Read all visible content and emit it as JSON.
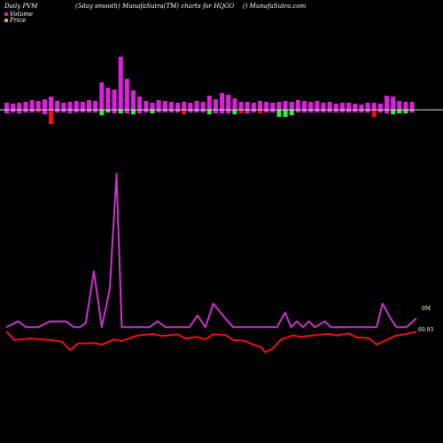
{
  "header": {
    "left": "Daily PVM",
    "middle": "(5day smooth) MunafaSutra(TM) charts for HQGO",
    "right": "() MunafaSutra.com"
  },
  "legend": {
    "volume": {
      "label": "Volume",
      "color": "#cc22cc"
    },
    "price": {
      "label": "Price",
      "color": "#ee9966"
    }
  },
  "end_labels": {
    "volume": "0M",
    "price": "60.93"
  },
  "colors": {
    "bar_up_magenta": "#dd22dd",
    "bar_up_green": "#33ee33",
    "bar_down_red": "#ee1111",
    "volume_line": "#cc33cc",
    "price_line": "#ee1111",
    "baseline": "#dddddd"
  },
  "chart_data": {
    "type": "line",
    "bars": [
      {
        "v": 8,
        "d": 4,
        "u": "m"
      },
      {
        "v": 7,
        "d": 3,
        "u": "m"
      },
      {
        "v": 8,
        "d": 4,
        "u": "m"
      },
      {
        "v": 9,
        "d": 3,
        "u": "m"
      },
      {
        "v": 11,
        "d": 3,
        "u": "m"
      },
      {
        "v": 10,
        "d": 3,
        "u": "r"
      },
      {
        "v": 12,
        "d": 5,
        "u": "m"
      },
      {
        "v": 15,
        "d": 16,
        "u": "r"
      },
      {
        "v": 10,
        "d": 3,
        "u": "m"
      },
      {
        "v": 8,
        "d": 3,
        "u": "m"
      },
      {
        "v": 9,
        "d": 4,
        "u": "m"
      },
      {
        "v": 10,
        "d": 3,
        "u": "m"
      },
      {
        "v": 9,
        "d": 3,
        "u": "m"
      },
      {
        "v": 11,
        "d": 3,
        "u": "m"
      },
      {
        "v": 10,
        "d": 3,
        "u": "m"
      },
      {
        "v": 31,
        "d": 6,
        "u": "g"
      },
      {
        "v": 25,
        "d": 3,
        "u": "g"
      },
      {
        "v": 23,
        "d": 4,
        "u": "m"
      },
      {
        "v": 60,
        "d": 4,
        "u": "g"
      },
      {
        "v": 35,
        "d": 4,
        "u": "m"
      },
      {
        "v": 22,
        "d": 5,
        "u": "g"
      },
      {
        "v": 15,
        "d": 4,
        "u": "m"
      },
      {
        "v": 10,
        "d": 3,
        "u": "m"
      },
      {
        "v": 8,
        "d": 4,
        "u": "g"
      },
      {
        "v": 11,
        "d": 3,
        "u": "m"
      },
      {
        "v": 10,
        "d": 3,
        "u": "m"
      },
      {
        "v": 9,
        "d": 3,
        "u": "m"
      },
      {
        "v": 8,
        "d": 3,
        "u": "m"
      },
      {
        "v": 9,
        "d": 5,
        "u": "r"
      },
      {
        "v": 8,
        "d": 3,
        "u": "m"
      },
      {
        "v": 10,
        "d": 3,
        "u": "m"
      },
      {
        "v": 9,
        "d": 3,
        "u": "m"
      },
      {
        "v": 16,
        "d": 5,
        "u": "g"
      },
      {
        "v": 12,
        "d": 4,
        "u": "m"
      },
      {
        "v": 19,
        "d": 4,
        "u": "m"
      },
      {
        "v": 17,
        "d": 4,
        "u": "m"
      },
      {
        "v": 13,
        "d": 5,
        "u": "g"
      },
      {
        "v": 9,
        "d": 4,
        "u": "r"
      },
      {
        "v": 9,
        "d": 4,
        "u": "m"
      },
      {
        "v": 8,
        "d": 3,
        "u": "m"
      },
      {
        "v": 10,
        "d": 4,
        "u": "r"
      },
      {
        "v": 9,
        "d": 3,
        "u": "m"
      },
      {
        "v": 8,
        "d": 3,
        "u": "m"
      },
      {
        "v": 9,
        "d": 8,
        "u": "g"
      },
      {
        "v": 10,
        "d": 8,
        "u": "g"
      },
      {
        "v": 9,
        "d": 6,
        "u": "g"
      },
      {
        "v": 11,
        "d": 3,
        "u": "m"
      },
      {
        "v": 10,
        "d": 3,
        "u": "m"
      },
      {
        "v": 9,
        "d": 3,
        "u": "m"
      },
      {
        "v": 10,
        "d": 3,
        "u": "m"
      },
      {
        "v": 8,
        "d": 3,
        "u": "m"
      },
      {
        "v": 9,
        "d": 3,
        "u": "m"
      },
      {
        "v": 7,
        "d": 3,
        "u": "m"
      },
      {
        "v": 8,
        "d": 3,
        "u": "m"
      },
      {
        "v": 8,
        "d": 3,
        "u": "m"
      },
      {
        "v": 7,
        "d": 3,
        "u": "m"
      },
      {
        "v": 6,
        "d": 3,
        "u": "m"
      },
      {
        "v": 8,
        "d": 3,
        "u": "m"
      },
      {
        "v": 8,
        "d": 8,
        "u": "r"
      },
      {
        "v": 7,
        "d": 3,
        "u": "m"
      },
      {
        "v": 16,
        "d": 4,
        "u": "m"
      },
      {
        "v": 15,
        "d": 5,
        "u": "g"
      },
      {
        "v": 10,
        "d": 4,
        "u": "g"
      },
      {
        "v": 9,
        "d": 4,
        "u": "g"
      },
      {
        "v": 9,
        "d": 3,
        "u": "m"
      }
    ],
    "volume_line": [
      {
        "x": 0,
        "y": 2
      },
      {
        "x": 3,
        "y": 4
      },
      {
        "x": 5,
        "y": 2
      },
      {
        "x": 8,
        "y": 2
      },
      {
        "x": 11,
        "y": 4
      },
      {
        "x": 15,
        "y": 4
      },
      {
        "x": 17,
        "y": 2
      },
      {
        "x": 18.5,
        "y": 2
      },
      {
        "x": 20,
        "y": 3.5
      },
      {
        "x": 22,
        "y": 21
      },
      {
        "x": 24,
        "y": 2
      },
      {
        "x": 26,
        "y": 15
      },
      {
        "x": 27.7,
        "y": 54
      },
      {
        "x": 29,
        "y": 2
      },
      {
        "x": 33,
        "y": 2
      },
      {
        "x": 36,
        "y": 2
      },
      {
        "x": 38,
        "y": 4
      },
      {
        "x": 40,
        "y": 2
      },
      {
        "x": 43,
        "y": 2
      },
      {
        "x": 46,
        "y": 2
      },
      {
        "x": 48,
        "y": 6
      },
      {
        "x": 50,
        "y": 2
      },
      {
        "x": 52,
        "y": 10
      },
      {
        "x": 55,
        "y": 5
      },
      {
        "x": 57,
        "y": 2
      },
      {
        "x": 60,
        "y": 2
      },
      {
        "x": 64,
        "y": 2
      },
      {
        "x": 68,
        "y": 2
      },
      {
        "x": 70,
        "y": 7
      },
      {
        "x": 71.5,
        "y": 2
      },
      {
        "x": 73,
        "y": 4
      },
      {
        "x": 74.5,
        "y": 2
      },
      {
        "x": 76,
        "y": 4
      },
      {
        "x": 77.5,
        "y": 2
      },
      {
        "x": 80,
        "y": 4
      },
      {
        "x": 81.5,
        "y": 2
      },
      {
        "x": 84,
        "y": 2
      },
      {
        "x": 88,
        "y": 2
      },
      {
        "x": 91,
        "y": 2
      },
      {
        "x": 93,
        "y": 2
      },
      {
        "x": 94.5,
        "y": 10
      },
      {
        "x": 96.5,
        "y": 5
      },
      {
        "x": 98,
        "y": 2
      },
      {
        "x": 100.5,
        "y": 2
      },
      {
        "x": 103,
        "y": 5
      }
    ],
    "price_line": [
      {
        "x": 0,
        "y": 61.0
      },
      {
        "x": 2,
        "y": 59.3
      },
      {
        "x": 6,
        "y": 59.6
      },
      {
        "x": 11,
        "y": 59.3
      },
      {
        "x": 14,
        "y": 59.0
      },
      {
        "x": 16,
        "y": 57.3
      },
      {
        "x": 18,
        "y": 58.6
      },
      {
        "x": 22,
        "y": 58.7
      },
      {
        "x": 24,
        "y": 58.4
      },
      {
        "x": 27,
        "y": 59.4
      },
      {
        "x": 29,
        "y": 59.1
      },
      {
        "x": 33,
        "y": 60.2
      },
      {
        "x": 37,
        "y": 60.5
      },
      {
        "x": 39,
        "y": 60.1
      },
      {
        "x": 43,
        "y": 60.4
      },
      {
        "x": 45,
        "y": 59.6
      },
      {
        "x": 48,
        "y": 59.9
      },
      {
        "x": 50,
        "y": 59.4
      },
      {
        "x": 52,
        "y": 60.4
      },
      {
        "x": 55,
        "y": 60.3
      },
      {
        "x": 57,
        "y": 59.3
      },
      {
        "x": 60,
        "y": 59.1
      },
      {
        "x": 62,
        "y": 58.4
      },
      {
        "x": 64,
        "y": 57.9
      },
      {
        "x": 65,
        "y": 56.9
      },
      {
        "x": 67,
        "y": 57.7
      },
      {
        "x": 69,
        "y": 59.4
      },
      {
        "x": 72,
        "y": 60.2
      },
      {
        "x": 74,
        "y": 59.9
      },
      {
        "x": 78,
        "y": 60.3
      },
      {
        "x": 81,
        "y": 60.5
      },
      {
        "x": 83,
        "y": 60.2
      },
      {
        "x": 86,
        "y": 60.6
      },
      {
        "x": 88,
        "y": 59.8
      },
      {
        "x": 91,
        "y": 59.7
      },
      {
        "x": 93,
        "y": 58.4
      },
      {
        "x": 96,
        "y": 59.5
      },
      {
        "x": 98,
        "y": 60.2
      },
      {
        "x": 100,
        "y": 60.4
      },
      {
        "x": 103,
        "y": 60.93
      }
    ]
  }
}
